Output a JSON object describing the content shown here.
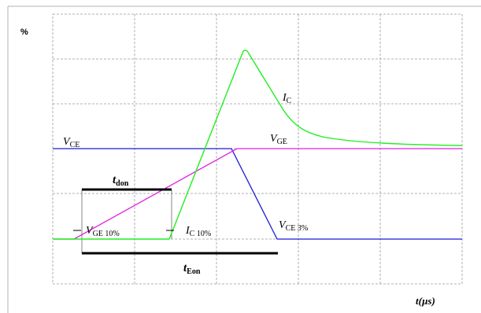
{
  "chart_data": {
    "type": "line",
    "y_unit": "%",
    "x_unit": "t(µs)",
    "grid": true,
    "series": [
      {
        "name": "I_C",
        "color": "#22ee22"
      },
      {
        "name": "V_CE",
        "color": "#1a1ad6"
      },
      {
        "name": "V_GE",
        "color": "#e020e0"
      }
    ],
    "labels": {
      "ic": {
        "main": "I",
        "sub": "C"
      },
      "vce": {
        "main": "V",
        "sub": "CE"
      },
      "vge": {
        "main": "V",
        "sub": "GE"
      },
      "vge10": {
        "main": "V",
        "sub": "GE 10%"
      },
      "ic10": {
        "main": "I",
        "sub": "C 10%"
      },
      "vce3": {
        "main": "V",
        "sub": "CE 3%"
      },
      "tdon": {
        "main": "t",
        "sub": "don"
      },
      "teon": {
        "main": "t",
        "sub": "Eon"
      }
    }
  },
  "colors": {
    "grid": "#9a9a9a",
    "border": "#b0b0b0",
    "bars": "#000000"
  }
}
